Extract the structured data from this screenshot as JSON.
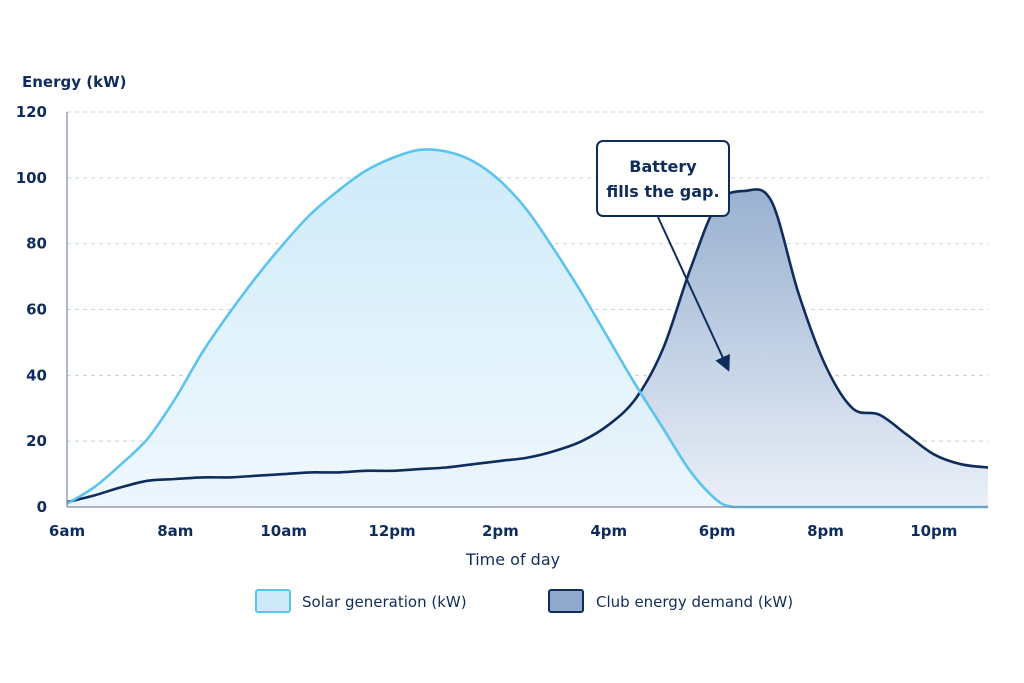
{
  "chart_data": {
    "type": "area",
    "ylabel": "Energy (kW)",
    "xlabel": "Time of day",
    "ylim": [
      0,
      120
    ],
    "y_ticks": [
      0,
      20,
      40,
      60,
      80,
      100,
      120
    ],
    "x_range": [
      6,
      23
    ],
    "x_ticks": [
      {
        "value": 6,
        "label": "6am"
      },
      {
        "value": 8,
        "label": "8am"
      },
      {
        "value": 10,
        "label": "10am"
      },
      {
        "value": 12,
        "label": "12pm"
      },
      {
        "value": 14,
        "label": "2pm"
      },
      {
        "value": 16,
        "label": "4pm"
      },
      {
        "value": 18,
        "label": "6pm"
      },
      {
        "value": 20,
        "label": "8pm"
      },
      {
        "value": 22,
        "label": "10pm"
      }
    ],
    "grid": true,
    "legend_position": "bottom",
    "series": [
      {
        "name": "Solar generation (kW)",
        "color": "#5bc4ee",
        "fill": "#cdeaf8",
        "x": [
          6,
          6.5,
          7,
          7.5,
          8,
          8.5,
          9,
          9.5,
          10,
          10.5,
          11,
          11.5,
          12,
          12.5,
          13,
          13.5,
          14,
          14.5,
          15,
          15.5,
          16,
          16.5,
          17,
          17.5,
          18,
          18.3,
          18.5,
          19,
          20,
          21,
          22,
          23
        ],
        "values": [
          1,
          6,
          13,
          21,
          33,
          47,
          59,
          70,
          80,
          89,
          96,
          102,
          106,
          108.5,
          108,
          105,
          99,
          90,
          78,
          65,
          51,
          37,
          24,
          11,
          2,
          0,
          0,
          0,
          0,
          0,
          0,
          0
        ]
      },
      {
        "name": "Club energy demand (kW)",
        "color": "#0f2d5c",
        "fill": "#8fa9cc",
        "x": [
          6,
          6.5,
          7,
          7.5,
          8,
          8.5,
          9,
          9.5,
          10,
          10.5,
          11,
          11.5,
          12,
          12.5,
          13,
          13.5,
          14,
          14.5,
          15,
          15.5,
          16,
          16.5,
          17,
          17.5,
          18,
          18.5,
          19,
          19.5,
          20,
          20.5,
          21,
          21.5,
          22,
          22.5,
          23
        ],
        "values": [
          1.5,
          3.5,
          6,
          8,
          8.5,
          9,
          9,
          9.5,
          10,
          10.5,
          10.5,
          11,
          11,
          11.5,
          12,
          13,
          14,
          15,
          17,
          20,
          25,
          33,
          48,
          72,
          92,
          96,
          93,
          65,
          43,
          30,
          28,
          22,
          16,
          13,
          12
        ]
      }
    ],
    "annotations": [
      {
        "text_lines": [
          "Battery",
          "fills the gap."
        ],
        "points_to": {
          "x": 18.2,
          "y": 42
        }
      }
    ]
  }
}
